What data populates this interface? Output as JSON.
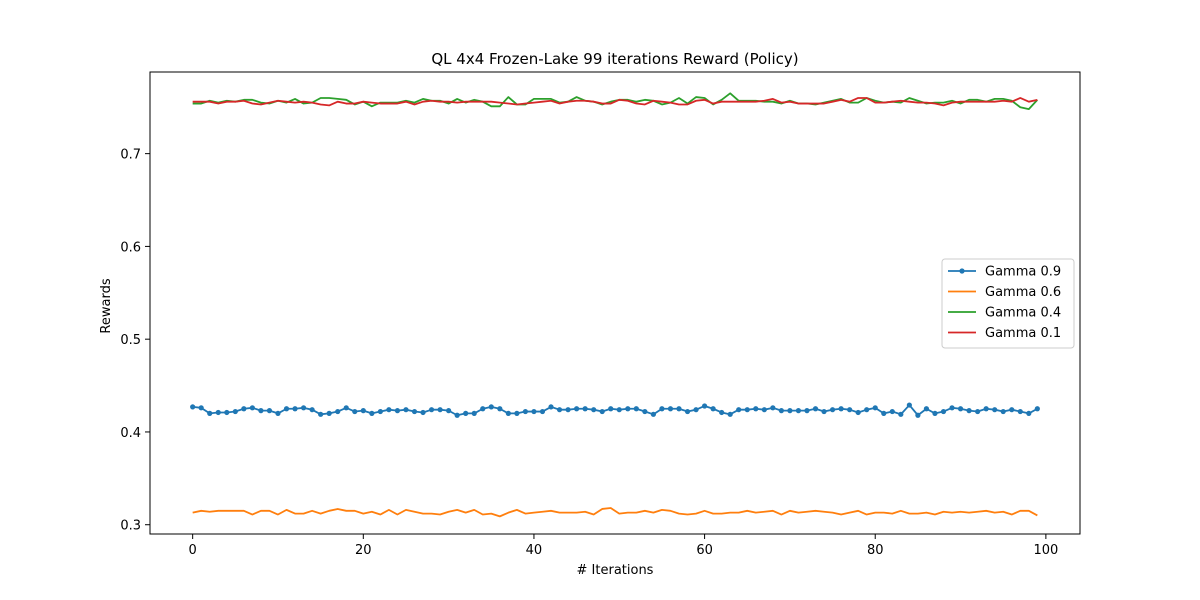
{
  "chart_data": {
    "type": "line",
    "title": "QL 4x4 Frozen-Lake 99 iterations  Reward (Policy)",
    "xlabel": "# Iterations",
    "ylabel": "Rewards",
    "xlim": [
      -5,
      104
    ],
    "ylim": [
      0.29,
      0.788
    ],
    "xticks": [
      0,
      20,
      40,
      60,
      80,
      100
    ],
    "yticks": [
      0.3,
      0.4,
      0.5,
      0.6,
      0.7
    ],
    "ytick_labels": [
      "0.3",
      "0.4",
      "0.5",
      "0.6",
      "0.7"
    ],
    "xtick_labels": [
      "0",
      "20",
      "40",
      "60",
      "80",
      "100"
    ],
    "grid": false,
    "legend_position": "center-right",
    "x": [
      0,
      1,
      2,
      3,
      4,
      5,
      6,
      7,
      8,
      9,
      10,
      11,
      12,
      13,
      14,
      15,
      16,
      17,
      18,
      19,
      20,
      21,
      22,
      23,
      24,
      25,
      26,
      27,
      28,
      29,
      30,
      31,
      32,
      33,
      34,
      35,
      36,
      37,
      38,
      39,
      40,
      41,
      42,
      43,
      44,
      45,
      46,
      47,
      48,
      49,
      50,
      51,
      52,
      53,
      54,
      55,
      56,
      57,
      58,
      59,
      60,
      61,
      62,
      63,
      64,
      65,
      66,
      67,
      68,
      69,
      70,
      71,
      72,
      73,
      74,
      75,
      76,
      77,
      78,
      79,
      80,
      81,
      82,
      83,
      84,
      85,
      86,
      87,
      88,
      89,
      90,
      91,
      92,
      93,
      94,
      95,
      96,
      97,
      98,
      99
    ],
    "series": [
      {
        "name": "Gamma 0.9",
        "color": "#1f77b4",
        "marker": true,
        "values": [
          0.427,
          0.426,
          0.42,
          0.421,
          0.421,
          0.422,
          0.425,
          0.426,
          0.423,
          0.423,
          0.42,
          0.425,
          0.425,
          0.426,
          0.424,
          0.419,
          0.42,
          0.422,
          0.426,
          0.422,
          0.423,
          0.42,
          0.422,
          0.424,
          0.423,
          0.424,
          0.422,
          0.421,
          0.424,
          0.424,
          0.423,
          0.418,
          0.42,
          0.42,
          0.425,
          0.427,
          0.425,
          0.42,
          0.42,
          0.422,
          0.422,
          0.422,
          0.427,
          0.424,
          0.424,
          0.425,
          0.425,
          0.424,
          0.422,
          0.425,
          0.424,
          0.425,
          0.425,
          0.422,
          0.419,
          0.425,
          0.425,
          0.425,
          0.422,
          0.424,
          0.428,
          0.425,
          0.421,
          0.419,
          0.424,
          0.424,
          0.425,
          0.424,
          0.426,
          0.423,
          0.423,
          0.423,
          0.423,
          0.425,
          0.422,
          0.424,
          0.425,
          0.424,
          0.421,
          0.424,
          0.426,
          0.42,
          0.422,
          0.419,
          0.429,
          0.418,
          0.425,
          0.42,
          0.422,
          0.426,
          0.425,
          0.423,
          0.422,
          0.425,
          0.424,
          0.422,
          0.424,
          0.422,
          0.42,
          0.425
        ]
      },
      {
        "name": "Gamma 0.6",
        "color": "#ff7f0e",
        "marker": false,
        "values": [
          0.313,
          0.315,
          0.314,
          0.315,
          0.315,
          0.315,
          0.315,
          0.311,
          0.315,
          0.315,
          0.311,
          0.316,
          0.312,
          0.312,
          0.315,
          0.312,
          0.315,
          0.317,
          0.315,
          0.315,
          0.312,
          0.314,
          0.311,
          0.316,
          0.311,
          0.316,
          0.314,
          0.312,
          0.312,
          0.311,
          0.314,
          0.316,
          0.313,
          0.316,
          0.311,
          0.312,
          0.309,
          0.313,
          0.316,
          0.312,
          0.313,
          0.314,
          0.315,
          0.313,
          0.313,
          0.313,
          0.314,
          0.311,
          0.317,
          0.318,
          0.312,
          0.313,
          0.313,
          0.315,
          0.313,
          0.316,
          0.315,
          0.312,
          0.311,
          0.312,
          0.315,
          0.312,
          0.312,
          0.313,
          0.313,
          0.315,
          0.313,
          0.314,
          0.315,
          0.311,
          0.315,
          0.313,
          0.314,
          0.315,
          0.314,
          0.313,
          0.311,
          0.313,
          0.315,
          0.311,
          0.313,
          0.313,
          0.312,
          0.315,
          0.312,
          0.312,
          0.313,
          0.311,
          0.314,
          0.313,
          0.314,
          0.313,
          0.314,
          0.315,
          0.313,
          0.314,
          0.311,
          0.315,
          0.315,
          0.31
        ]
      },
      {
        "name": "Gamma 0.4",
        "color": "#2ca02c",
        "marker": false,
        "values": [
          0.754,
          0.754,
          0.757,
          0.755,
          0.757,
          0.756,
          0.758,
          0.758,
          0.755,
          0.754,
          0.757,
          0.755,
          0.759,
          0.754,
          0.755,
          0.76,
          0.76,
          0.759,
          0.758,
          0.753,
          0.756,
          0.751,
          0.755,
          0.755,
          0.755,
          0.757,
          0.755,
          0.759,
          0.757,
          0.757,
          0.754,
          0.759,
          0.755,
          0.758,
          0.756,
          0.751,
          0.751,
          0.761,
          0.753,
          0.753,
          0.759,
          0.759,
          0.759,
          0.755,
          0.756,
          0.761,
          0.757,
          0.756,
          0.753,
          0.756,
          0.758,
          0.758,
          0.756,
          0.758,
          0.757,
          0.753,
          0.755,
          0.76,
          0.754,
          0.761,
          0.76,
          0.753,
          0.758,
          0.765,
          0.757,
          0.757,
          0.757,
          0.756,
          0.756,
          0.754,
          0.757,
          0.754,
          0.754,
          0.753,
          0.755,
          0.757,
          0.759,
          0.755,
          0.755,
          0.76,
          0.757,
          0.755,
          0.756,
          0.755,
          0.76,
          0.757,
          0.754,
          0.755,
          0.755,
          0.757,
          0.754,
          0.758,
          0.758,
          0.756,
          0.759,
          0.759,
          0.757,
          0.75,
          0.748,
          0.758
        ]
      },
      {
        "name": "Gamma 0.1",
        "color": "#d62728",
        "marker": false,
        "values": [
          0.756,
          0.756,
          0.756,
          0.754,
          0.756,
          0.756,
          0.757,
          0.754,
          0.753,
          0.755,
          0.757,
          0.756,
          0.755,
          0.756,
          0.755,
          0.753,
          0.752,
          0.756,
          0.754,
          0.754,
          0.756,
          0.755,
          0.754,
          0.754,
          0.754,
          0.756,
          0.753,
          0.756,
          0.757,
          0.756,
          0.756,
          0.755,
          0.756,
          0.756,
          0.756,
          0.756,
          0.755,
          0.754,
          0.753,
          0.754,
          0.755,
          0.756,
          0.757,
          0.754,
          0.756,
          0.757,
          0.757,
          0.756,
          0.754,
          0.754,
          0.758,
          0.757,
          0.754,
          0.753,
          0.757,
          0.756,
          0.755,
          0.753,
          0.753,
          0.757,
          0.758,
          0.754,
          0.756,
          0.756,
          0.756,
          0.756,
          0.756,
          0.757,
          0.759,
          0.755,
          0.756,
          0.754,
          0.754,
          0.754,
          0.754,
          0.756,
          0.758,
          0.756,
          0.76,
          0.76,
          0.755,
          0.755,
          0.756,
          0.757,
          0.756,
          0.755,
          0.755,
          0.754,
          0.752,
          0.755,
          0.756,
          0.756,
          0.756,
          0.756,
          0.756,
          0.757,
          0.756,
          0.76,
          0.756,
          0.758
        ]
      }
    ]
  }
}
